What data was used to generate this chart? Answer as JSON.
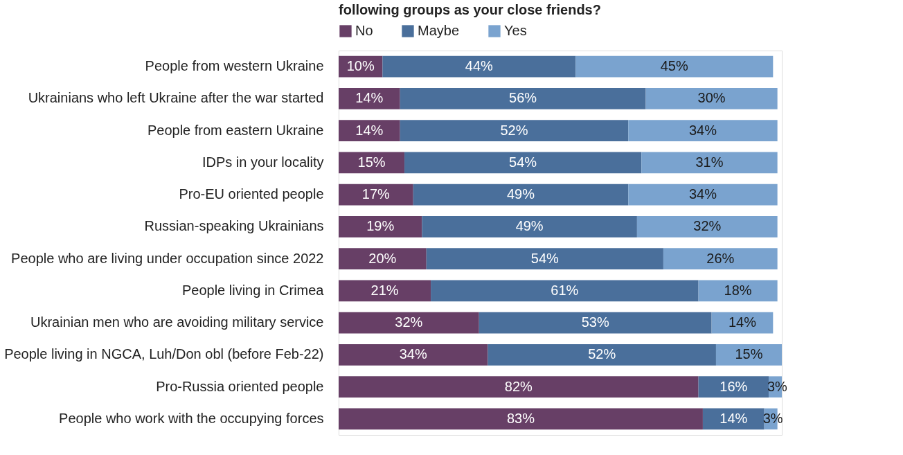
{
  "chart_data": {
    "type": "bar",
    "orientation": "horizontal",
    "stacked": true,
    "title": "following groups as your close friends?",
    "legend": "top",
    "categories": [
      "People from western Ukraine",
      "Ukrainians who left Ukraine after the war started",
      "People from eastern Ukraine",
      "IDPs in your locality",
      "Pro-EU oriented people",
      "Russian-speaking Ukrainians",
      "People who are living under occupation since 2022",
      "People living in Crimea",
      "Ukrainian men who are avoiding military service",
      "People living in NGCA, Luh/Don obl (before Feb-22)",
      "Pro-Russia oriented people",
      "People who work with the occupying forces"
    ],
    "series": [
      {
        "name": "No",
        "color": "#673f66",
        "values": [
          10,
          14,
          14,
          15,
          17,
          19,
          20,
          21,
          32,
          34,
          82,
          83
        ],
        "value_labels": [
          "10%",
          "14%",
          "14%",
          "15%",
          "17%",
          "19%",
          "20%",
          "21%",
          "32%",
          "34%",
          "82%",
          "83%"
        ]
      },
      {
        "name": "Maybe",
        "color": "#4a6f9b",
        "values": [
          44,
          56,
          52,
          54,
          49,
          49,
          54,
          61,
          53,
          52,
          16,
          14
        ],
        "value_labels": [
          "44%",
          "56%",
          "52%",
          "54%",
          "49%",
          "49%",
          "54%",
          "61%",
          "53%",
          "52%",
          "16%",
          "14%"
        ]
      },
      {
        "name": "Yes",
        "color": "#7aa3cf",
        "values": [
          45,
          30,
          34,
          31,
          34,
          32,
          26,
          18,
          14,
          15,
          3,
          3
        ],
        "value_labels": [
          "45%",
          "30%",
          "34%",
          "31%",
          "34%",
          "32%",
          "26%",
          "18%",
          "14%",
          "15%",
          "3%",
          "3%"
        ]
      }
    ]
  }
}
